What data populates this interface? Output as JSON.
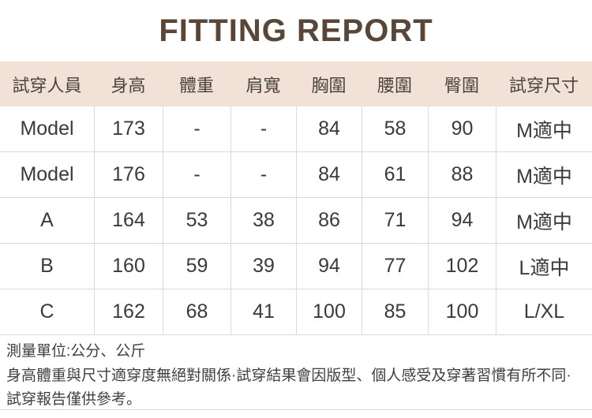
{
  "title": "FITTING REPORT",
  "colors": {
    "title_text": "#5a4636",
    "header_bg": "#f2e1d7",
    "border": "#d9d9d9",
    "body_text": "#3a3a3a"
  },
  "table": {
    "headers": [
      "試穿人員",
      "身高",
      "體重",
      "肩寬",
      "胸圍",
      "腰圍",
      "臀圍",
      "試穿尺寸"
    ],
    "rows": [
      {
        "cells": [
          "Model",
          "173",
          "-",
          "-",
          "84",
          "58",
          "90",
          "M適中"
        ]
      },
      {
        "cells": [
          "Model",
          "176",
          "-",
          "-",
          "84",
          "61",
          "88",
          "M適中"
        ]
      },
      {
        "cells": [
          "A",
          "164",
          "53",
          "38",
          "86",
          "71",
          "94",
          "M適中"
        ]
      },
      {
        "cells": [
          "B",
          "160",
          "59",
          "39",
          "94",
          "77",
          "102",
          "L適中"
        ]
      },
      {
        "cells": [
          "C",
          "162",
          "68",
          "41",
          "100",
          "85",
          "100",
          "L/XL"
        ]
      }
    ]
  },
  "footer": {
    "unit_note": "測量單位:公分、公斤",
    "disclaimer": "身高體重與尺寸適穿度無絕對關係·試穿結果會因版型、個人感受及穿著習慣有所不同·試穿報告僅供參考。"
  }
}
